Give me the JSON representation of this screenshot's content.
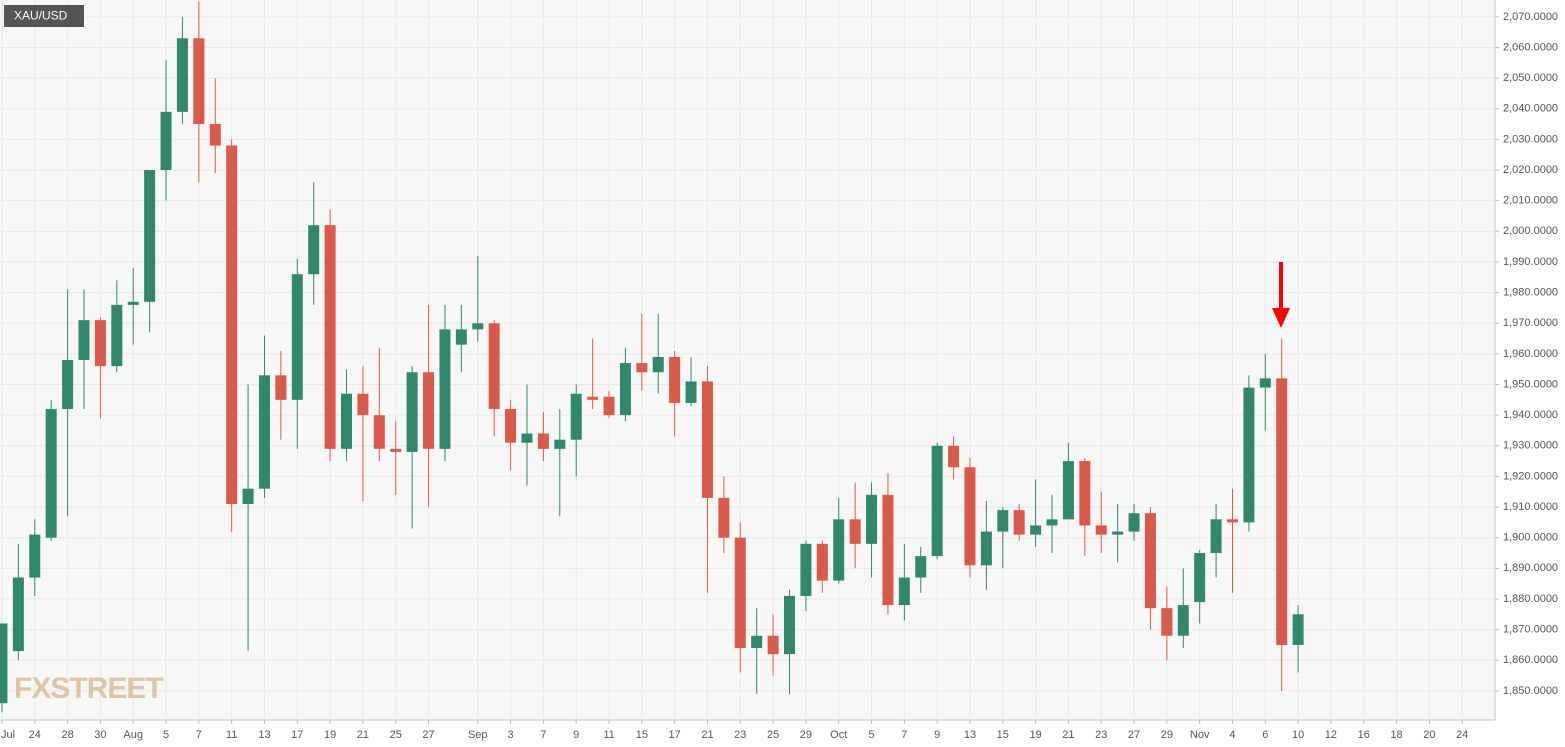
{
  "chart_data": {
    "type": "candlestick",
    "title": "XAU/USD",
    "watermark": "FXSTREET",
    "up_color": "#31876b",
    "down_color": "#d9594a",
    "grid": true,
    "x": [
      0,
      1,
      2,
      3,
      4,
      5,
      6,
      7,
      8,
      9,
      10,
      11,
      12,
      13,
      14,
      15,
      16,
      17,
      18,
      19,
      20,
      21,
      22,
      23,
      24,
      25,
      26,
      27,
      28,
      29,
      30,
      31,
      32,
      33,
      34,
      35,
      36,
      37,
      38,
      39,
      40,
      41,
      42,
      43,
      44,
      45,
      46,
      47,
      48,
      49,
      50,
      51,
      52,
      53,
      54,
      55,
      56,
      57,
      58,
      59,
      60,
      61,
      62,
      63,
      64,
      65,
      66,
      67,
      68,
      69,
      70,
      71,
      72,
      73,
      74,
      75,
      76,
      77,
      78,
      79
    ],
    "open": [
      1846,
      1863,
      1887,
      1900,
      1942,
      1958,
      1971,
      1956,
      1976,
      1977,
      2020,
      2039,
      2063,
      2035,
      2028,
      1911,
      1916,
      1953,
      1945,
      1986,
      2002,
      1929,
      1947,
      1940,
      1929,
      1928,
      1954,
      1929,
      1963,
      1968,
      1970,
      1942,
      1931,
      1934,
      1929,
      1932,
      1946,
      1946,
      1940,
      1957,
      1954,
      1959,
      1944,
      1951,
      1913,
      1900,
      1864,
      1868,
      1862,
      1881,
      1898,
      1886,
      1906,
      1898,
      1914,
      1878,
      1887,
      1894,
      1930,
      1923,
      1891,
      1902,
      1909,
      1901,
      1904,
      1906,
      1925,
      1904,
      1901,
      1902,
      1908,
      1877,
      1868,
      1879,
      1895,
      1906,
      1905,
      1949,
      1952,
      1865
    ],
    "high": [
      1872,
      1898,
      1906,
      1945,
      1981,
      1981,
      1972,
      1984,
      1988,
      2020,
      2056,
      2070,
      2075,
      2050,
      2030,
      1950,
      1966,
      1961,
      1991,
      2016,
      2007,
      1955,
      1956,
      1962,
      1938,
      1956,
      1976,
      1976,
      1976,
      1992,
      1971,
      1945,
      1950,
      1941,
      1942,
      1950,
      1965,
      1948,
      1962,
      1973,
      1973,
      1961,
      1959,
      1956,
      1920,
      1905,
      1877,
      1875,
      1883,
      1899,
      1899,
      1913,
      1918,
      1918,
      1921,
      1898,
      1897,
      1931,
      1933,
      1926,
      1912,
      1910,
      1911,
      1919,
      1914,
      1931,
      1926,
      1915,
      1911,
      1911,
      1910,
      1884,
      1890,
      1896,
      1911,
      1916,
      1953,
      1960,
      1965,
      1878
    ],
    "low": [
      1843,
      1860,
      1881,
      1899,
      1907,
      1942,
      1939,
      1954,
      1963,
      1967,
      2010,
      2035,
      2016,
      2019,
      1902,
      1863,
      1913,
      1932,
      1929,
      1976,
      1925,
      1925,
      1912,
      1925,
      1914,
      1903,
      1910,
      1925,
      1954,
      1964,
      1933,
      1922,
      1917,
      1925,
      1907,
      1920,
      1942,
      1939,
      1938,
      1948,
      1947,
      1933,
      1943,
      1882,
      1895,
      1856,
      1849,
      1855,
      1849,
      1876,
      1882,
      1885,
      1890,
      1887,
      1875,
      1873,
      1882,
      1893,
      1919,
      1887,
      1883,
      1890,
      1899,
      1897,
      1895,
      1906,
      1894,
      1895,
      1892,
      1899,
      1870,
      1860,
      1864,
      1872,
      1887,
      1882,
      1902,
      1935,
      1850,
      1856
    ],
    "close": [
      1872,
      1887,
      1901,
      1942,
      1958,
      1971,
      1956,
      1976,
      1977,
      2020,
      2039,
      2063,
      2035,
      2028,
      1911,
      1916,
      1953,
      1945,
      1986,
      2002,
      1929,
      1947,
      1940,
      1929,
      1928,
      1954,
      1929,
      1968,
      1968,
      1970,
      1942,
      1931,
      1934,
      1929,
      1932,
      1947,
      1945,
      1940,
      1957,
      1954,
      1959,
      1944,
      1951,
      1913,
      1900,
      1864,
      1868,
      1862,
      1881,
      1898,
      1886,
      1906,
      1898,
      1914,
      1878,
      1887,
      1894,
      1930,
      1923,
      1891,
      1902,
      1909,
      1901,
      1904,
      1906,
      1925,
      1904,
      1901,
      1902,
      1908,
      1877,
      1868,
      1878,
      1895,
      1906,
      1905,
      1949,
      1952,
      1865,
      1875
    ],
    "xlim": [
      -0.12,
      91.0
    ],
    "xticks": [
      {
        "value": 0,
        "label": "Jul"
      },
      {
        "value": 2,
        "label": "24"
      },
      {
        "value": 4,
        "label": "28"
      },
      {
        "value": 6,
        "label": "30"
      },
      {
        "value": 8,
        "label": "Aug"
      },
      {
        "value": 10,
        "label": "5"
      },
      {
        "value": 12,
        "label": "7"
      },
      {
        "value": 14,
        "label": "11"
      },
      {
        "value": 16,
        "label": "13"
      },
      {
        "value": 18,
        "label": "17"
      },
      {
        "value": 20,
        "label": "19"
      },
      {
        "value": 22,
        "label": "21"
      },
      {
        "value": 24,
        "label": "25"
      },
      {
        "value": 26,
        "label": "27"
      },
      {
        "value": 29,
        "label": "Sep"
      },
      {
        "value": 31,
        "label": "3"
      },
      {
        "value": 33,
        "label": "7"
      },
      {
        "value": 35,
        "label": "9"
      },
      {
        "value": 37,
        "label": "11"
      },
      {
        "value": 39,
        "label": "15"
      },
      {
        "value": 41,
        "label": "17"
      },
      {
        "value": 43,
        "label": "21"
      },
      {
        "value": 45,
        "label": "23"
      },
      {
        "value": 47,
        "label": "25"
      },
      {
        "value": 49,
        "label": "29"
      },
      {
        "value": 51,
        "label": "Oct"
      },
      {
        "value": 53,
        "label": "5"
      },
      {
        "value": 55,
        "label": "7"
      },
      {
        "value": 57,
        "label": "9"
      },
      {
        "value": 59,
        "label": "13"
      },
      {
        "value": 61,
        "label": "15"
      },
      {
        "value": 63,
        "label": "19"
      },
      {
        "value": 65,
        "label": "21"
      },
      {
        "value": 67,
        "label": "23"
      },
      {
        "value": 69,
        "label": "27"
      },
      {
        "value": 71,
        "label": "29"
      },
      {
        "value": 73,
        "label": "Nov"
      },
      {
        "value": 75,
        "label": "4"
      },
      {
        "value": 77,
        "label": "6"
      },
      {
        "value": 79,
        "label": "10"
      },
      {
        "value": 81,
        "label": "12"
      },
      {
        "value": 83,
        "label": "16"
      },
      {
        "value": 85,
        "label": "18"
      },
      {
        "value": 87,
        "label": "20"
      },
      {
        "value": 89,
        "label": "24"
      }
    ],
    "ylim": [
      1840.5,
      2075.5
    ],
    "yticks": [
      {
        "value": 1850,
        "label": "1,850.0000"
      },
      {
        "value": 1860,
        "label": "1,860.0000"
      },
      {
        "value": 1870,
        "label": "1,870.0000"
      },
      {
        "value": 1880,
        "label": "1,880.0000"
      },
      {
        "value": 1890,
        "label": "1,890.0000"
      },
      {
        "value": 1900,
        "label": "1,900.0000"
      },
      {
        "value": 1910,
        "label": "1,910.0000"
      },
      {
        "value": 1920,
        "label": "1,920.0000"
      },
      {
        "value": 1930,
        "label": "1,930.0000"
      },
      {
        "value": 1940,
        "label": "1,940.0000"
      },
      {
        "value": 1950,
        "label": "1,950.0000"
      },
      {
        "value": 1960,
        "label": "1,960.0000"
      },
      {
        "value": 1970,
        "label": "1,970.0000"
      },
      {
        "value": 1980,
        "label": "1,980.0000"
      },
      {
        "value": 1990,
        "label": "1,990.0000"
      },
      {
        "value": 2000,
        "label": "2,000.0000"
      },
      {
        "value": 2010,
        "label": "2,010.0000"
      },
      {
        "value": 2020,
        "label": "2,020.0000"
      },
      {
        "value": 2030,
        "label": "2,030.0000"
      },
      {
        "value": 2040,
        "label": "2,040.0000"
      },
      {
        "value": 2050,
        "label": "2,050.0000"
      },
      {
        "value": 2060,
        "label": "2,060.0000"
      },
      {
        "value": 2070,
        "label": "2,070.0000"
      }
    ]
  }
}
